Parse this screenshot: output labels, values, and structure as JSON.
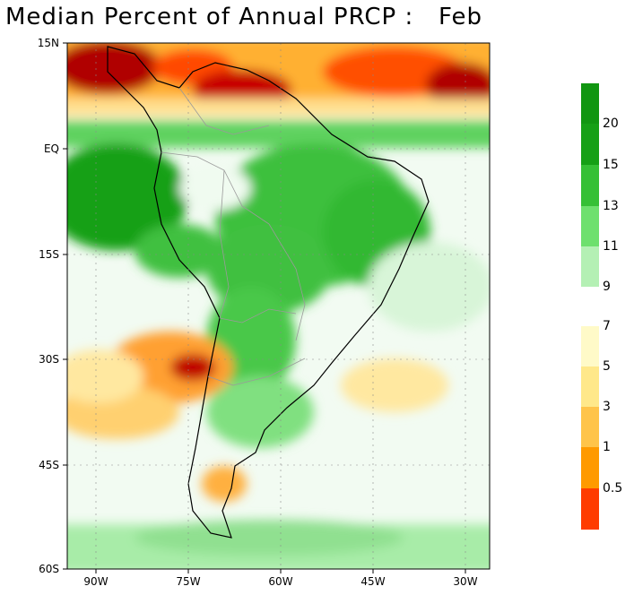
{
  "title": "Median Percent of Annual PRCP :   Feb",
  "map": {
    "lat_labels": [
      "15N",
      "EQ",
      "15S",
      "30S",
      "45S",
      "60S"
    ],
    "lon_labels": [
      "90W",
      "75W",
      "60W",
      "45W",
      "30W"
    ],
    "lat_range": [
      -60,
      15
    ],
    "lon_range": [
      -95,
      -27
    ]
  },
  "legend": {
    "upper": [
      {
        "label": "20",
        "color": "#16a016"
      },
      {
        "label": "15",
        "color": "#36c036"
      },
      {
        "label": "13",
        "color": "#6ee06e"
      },
      {
        "label": "11",
        "color": "#b4f0b4"
      },
      {
        "label": "9",
        "color": "#e8fae8"
      }
    ],
    "upper_top_color": "#119611",
    "upper_bottom_color": "#f4fdf4",
    "lower": [
      {
        "label": "7",
        "color": "#fffac8"
      },
      {
        "label": "5",
        "color": "#ffe88a"
      },
      {
        "label": "3",
        "color": "#ffc44a"
      },
      {
        "label": "1",
        "color": "#ff9a00"
      },
      {
        "label": "0.5",
        "color": "#ff3c00"
      }
    ],
    "lower_bottom_color": "#a50000"
  }
}
